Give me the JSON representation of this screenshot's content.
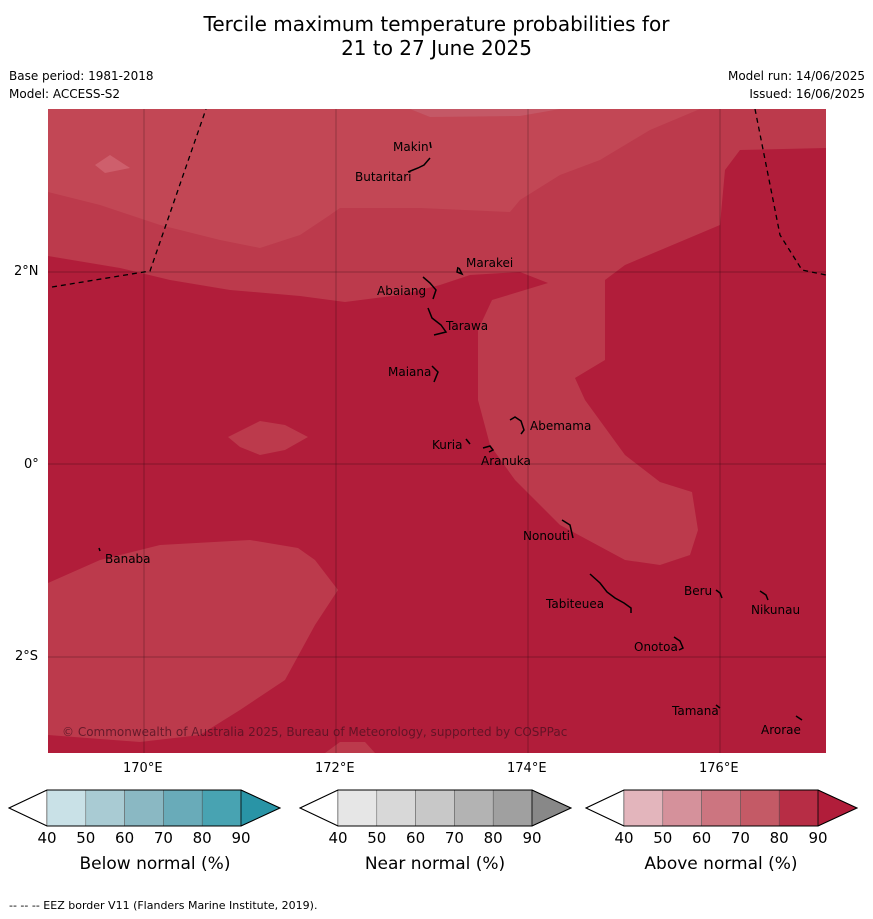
{
  "title": {
    "line1": "Tercile maximum temperature probabilities for",
    "line2": "21 to 27 June 2025"
  },
  "meta": {
    "base_period": "Base period: 1981-2018",
    "model": "Model: ACCESS-S2",
    "model_run": "Model run: 14/06/2025",
    "issued": "Issued: 16/06/2025"
  },
  "map": {
    "lon_labels": [
      "170°E",
      "172°E",
      "174°E",
      "176°E"
    ],
    "lat_labels": [
      "2°N",
      "0°",
      "2°S"
    ],
    "copyright": "© Commonwealth of Australia 2025, Bureau of Meteorology, supported by COSPPac",
    "places": [
      "Makin",
      "Butaritari",
      "Marakei",
      "Abaiang",
      "Tarawa",
      "Maiana",
      "Abemama",
      "Kuria",
      "Aranuka",
      "Nonouti",
      "Banaba",
      "Beru",
      "Nikunau",
      "Tabiteuea",
      "Onotoa",
      "Tamana",
      "Arorae"
    ],
    "colors": {
      "above_50": "#c24755",
      "above_60_70": "#bc3a4c",
      "above_80_90": "#b11d3a"
    }
  },
  "colorbars": [
    {
      "label": "Below normal (%)",
      "ticks": [
        "40",
        "50",
        "60",
        "70",
        "80",
        "90"
      ],
      "colors": [
        "#ffffff",
        "#c9e1e7",
        "#a9cbd3",
        "#8ab8c3",
        "#69abb9",
        "#48a3b2",
        "#2994a6"
      ]
    },
    {
      "label": "Near normal (%)",
      "ticks": [
        "40",
        "50",
        "60",
        "70",
        "80",
        "90"
      ],
      "colors": [
        "#ffffff",
        "#e6e6e6",
        "#d8d8d8",
        "#c8c8c8",
        "#b3b3b3",
        "#a0a0a0",
        "#888888"
      ]
    },
    {
      "label": "Above normal (%)",
      "ticks": [
        "40",
        "50",
        "60",
        "70",
        "80",
        "90"
      ],
      "colors": [
        "#ffffff",
        "#e3b5bc",
        "#d5919b",
        "#cc7580",
        "#c45a66",
        "#b72d45",
        "#b11d3a"
      ]
    }
  ],
  "footnote": "--  --  -- EEZ border V11 (Flanders Marine Institute, 2019)."
}
